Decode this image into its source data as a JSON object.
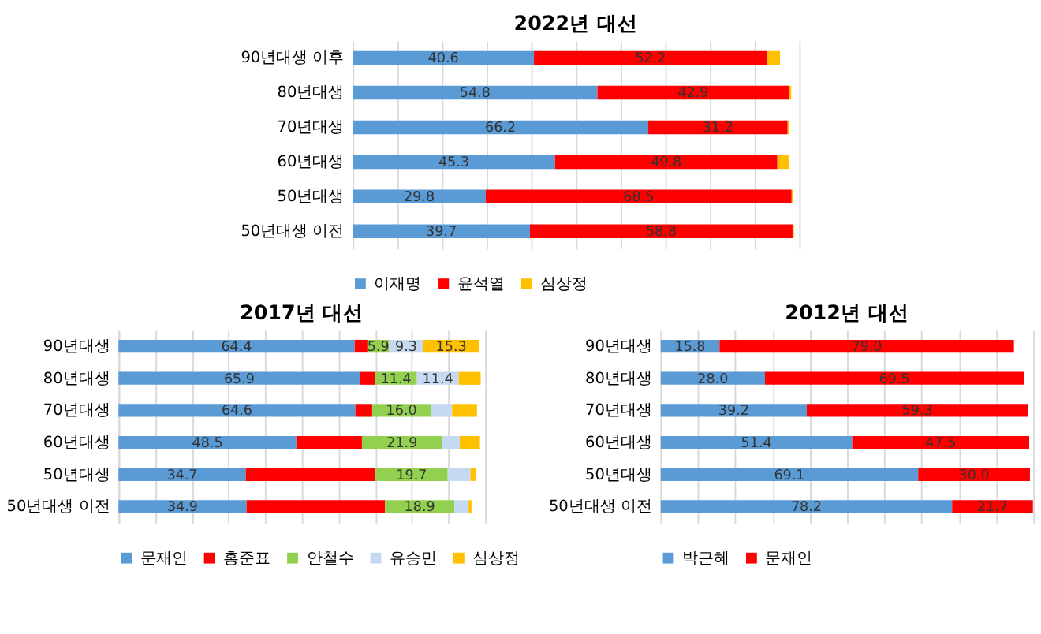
{
  "chart_data": [
    {
      "type": "bar",
      "title": "2022년 대선",
      "orientation": "horizontal",
      "stacked": true,
      "categories": [
        "90년대생 이후",
        "80년대생",
        "70년대생",
        "60년대생",
        "50년대생",
        "50년대생 이전"
      ],
      "series": [
        {
          "name": "이재명",
          "color": "#5b9bd5",
          "values": [
            40.6,
            54.8,
            66.2,
            45.3,
            29.8,
            39.7
          ],
          "value_labels": [
            "40.6",
            "54.8",
            "66.2",
            "45.3",
            "29.8",
            "39.7"
          ]
        },
        {
          "name": "윤석열",
          "color": "#ff0000",
          "values": [
            52.2,
            42.9,
            31.2,
            49.8,
            68.5,
            58.8
          ],
          "value_labels": [
            "52.2",
            "42.9",
            "31.2",
            "49.8",
            "68.5",
            "58.8"
          ]
        },
        {
          "name": "심상정",
          "color": "#ffc000",
          "values": [
            2.9,
            0.5,
            0.3,
            2.6,
            0.3,
            0.3
          ],
          "value_labels": [
            null,
            null,
            null,
            null,
            null,
            null
          ]
        }
      ],
      "xlim": [
        0,
        100
      ],
      "tick_labels": "y",
      "grid": "x",
      "legend": "bottom"
    },
    {
      "type": "bar",
      "title": "2017년 대선",
      "orientation": "horizontal",
      "stacked": true,
      "categories": [
        "90년대생",
        "80년대생",
        "70년대생",
        "60년대생",
        "50년대생",
        "50년대생 이전"
      ],
      "series": [
        {
          "name": "문재인",
          "color": "#5b9bd5",
          "values": [
            64.4,
            65.9,
            64.6,
            48.5,
            34.7,
            34.9
          ],
          "value_labels": [
            "64.4",
            "65.9",
            "64.6",
            "48.5",
            "34.7",
            "34.9"
          ]
        },
        {
          "name": "홍준표",
          "color": "#ff0000",
          "values": [
            3.5,
            4.1,
            4.6,
            17.9,
            35.4,
            37.8
          ],
          "value_labels": [
            null,
            null,
            null,
            null,
            null,
            null
          ]
        },
        {
          "name": "안철수",
          "color": "#92d050",
          "values": [
            5.9,
            11.4,
            16.0,
            21.9,
            19.7,
            18.9
          ],
          "value_labels": [
            "5.9",
            "11.4",
            "16.0",
            "21.9",
            "19.7",
            "18.9"
          ]
        },
        {
          "name": "유승민",
          "color": "#c5d9f1",
          "values": [
            9.3,
            11.4,
            5.8,
            4.8,
            6.2,
            3.9
          ],
          "value_labels": [
            "9.3",
            "11.4",
            null,
            null,
            null,
            null
          ]
        },
        {
          "name": "심상정",
          "color": "#ffc000",
          "values": [
            15.3,
            6.0,
            6.8,
            5.5,
            1.5,
            0.8
          ],
          "value_labels": [
            "15.3",
            null,
            null,
            null,
            null,
            null
          ]
        }
      ],
      "xlim": [
        0,
        100
      ],
      "tick_labels": "y",
      "grid": "x",
      "legend": "bottom"
    },
    {
      "type": "bar",
      "title": "2012년 대선",
      "orientation": "horizontal",
      "stacked": true,
      "categories": [
        "90년대생",
        "80년대생",
        "70년대생",
        "60년대생",
        "50년대생",
        "50년대생 이전"
      ],
      "series": [
        {
          "name": "박근혜",
          "color": "#5b9bd5",
          "values": [
            15.8,
            28.0,
            39.2,
            51.4,
            69.1,
            78.2
          ],
          "value_labels": [
            "15.8",
            "28.0",
            "39.2",
            "51.4",
            "69.1",
            "78.2"
          ]
        },
        {
          "name": "문재인",
          "color": "#ff0000",
          "values": [
            79.0,
            69.5,
            59.3,
            47.5,
            30.0,
            21.7
          ],
          "value_labels": [
            "79.0",
            "69.5",
            "59.3",
            "47.5",
            "30.0",
            "21.7"
          ]
        }
      ],
      "xlim": [
        0,
        100
      ],
      "tick_labels": "y",
      "grid": "x",
      "legend": "bottom"
    }
  ]
}
